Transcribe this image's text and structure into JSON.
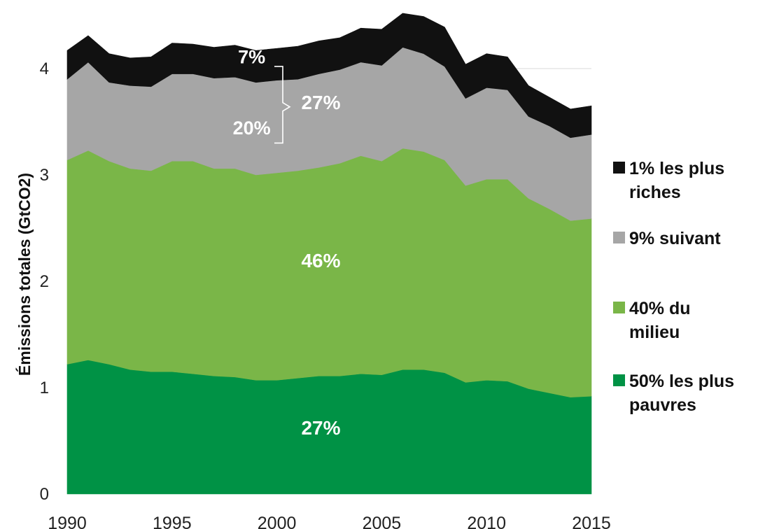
{
  "chart_data": {
    "type": "area",
    "stacked": true,
    "xlabel": "",
    "ylabel": "Émissions totales (GtCO2)",
    "xlim": [
      1990,
      2015
    ],
    "ylim": [
      0,
      4.4
    ],
    "x_ticks": [
      1990,
      1995,
      2000,
      2005,
      2010,
      2015
    ],
    "y_ticks": [
      0,
      1,
      2,
      3,
      4
    ],
    "grid": "horizontal",
    "legend_position": "right",
    "x": [
      1990,
      1991,
      1992,
      1993,
      1994,
      1995,
      1996,
      1997,
      1998,
      1999,
      2000,
      2001,
      2002,
      2003,
      2004,
      2005,
      2006,
      2007,
      2008,
      2009,
      2010,
      2011,
      2012,
      2013,
      2014,
      2015
    ],
    "series": [
      {
        "name": "50% les plus pauvres",
        "color": "#009245",
        "values": [
          1.22,
          1.26,
          1.22,
          1.17,
          1.15,
          1.15,
          1.13,
          1.11,
          1.1,
          1.07,
          1.07,
          1.09,
          1.11,
          1.11,
          1.13,
          1.12,
          1.17,
          1.17,
          1.14,
          1.05,
          1.07,
          1.06,
          0.99,
          0.95,
          0.91,
          0.92
        ]
      },
      {
        "name": "40% du milieu",
        "color": "#7ab648",
        "values": [
          1.92,
          1.97,
          1.91,
          1.89,
          1.89,
          1.98,
          2.0,
          1.95,
          1.96,
          1.93,
          1.95,
          1.95,
          1.96,
          2.0,
          2.05,
          2.01,
          2.08,
          2.05,
          2.0,
          1.85,
          1.89,
          1.9,
          1.79,
          1.73,
          1.66,
          1.67
        ]
      },
      {
        "name": "9% suivant",
        "color": "#a6a6a6",
        "values": [
          0.76,
          0.83,
          0.74,
          0.78,
          0.79,
          0.82,
          0.82,
          0.85,
          0.86,
          0.87,
          0.87,
          0.86,
          0.88,
          0.88,
          0.88,
          0.9,
          0.95,
          0.92,
          0.88,
          0.82,
          0.86,
          0.84,
          0.77,
          0.78,
          0.78,
          0.79
        ]
      },
      {
        "name": "1% les plus riches",
        "color": "#111111",
        "values": [
          0.27,
          0.25,
          0.27,
          0.26,
          0.28,
          0.29,
          0.28,
          0.29,
          0.3,
          0.3,
          0.3,
          0.31,
          0.31,
          0.3,
          0.32,
          0.34,
          0.32,
          0.35,
          0.37,
          0.32,
          0.32,
          0.31,
          0.29,
          0.27,
          0.27,
          0.27
        ]
      }
    ],
    "annotations": [
      {
        "text": "7%",
        "x": 1998.8,
        "y": 4.05,
        "size": 27
      },
      {
        "text": "27%",
        "x": 2002.1,
        "y": 3.62,
        "size": 28
      },
      {
        "text": "20%",
        "x": 1998.8,
        "y": 3.38,
        "size": 27
      },
      {
        "text": "46%",
        "x": 2002.1,
        "y": 2.13,
        "size": 28
      },
      {
        "text": "27%",
        "x": 2002.1,
        "y": 0.56,
        "size": 28
      }
    ],
    "legend": [
      {
        "series": 3,
        "lines": [
          "1% les plus",
          "riches"
        ]
      },
      {
        "series": 2,
        "lines": [
          "9% suivant"
        ]
      },
      {
        "series": 1,
        "lines": [
          "40% du",
          "milieu"
        ]
      },
      {
        "series": 0,
        "lines": [
          "50% les plus",
          "pauvres"
        ]
      }
    ]
  }
}
